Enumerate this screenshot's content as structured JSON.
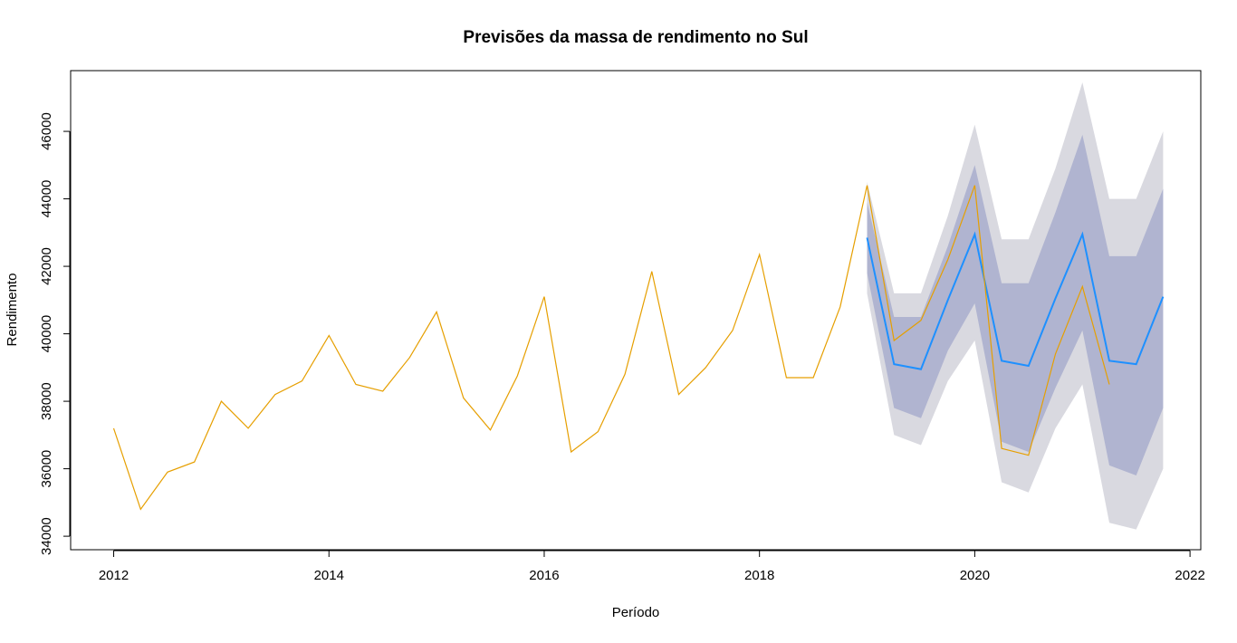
{
  "chart_data": {
    "type": "line",
    "title": "Previsões da massa de rendimento no Sul",
    "xlabel": "Período",
    "ylabel": "Rendimento",
    "xlim": [
      2011.6,
      2022.1
    ],
    "ylim": [
      33600,
      47800
    ],
    "x_ticks": [
      2012,
      2014,
      2016,
      2018,
      2020,
      2022
    ],
    "y_ticks": [
      34000,
      36000,
      38000,
      40000,
      42000,
      44000,
      46000
    ],
    "x_tick_labels": [
      "2012",
      "2014",
      "2016",
      "2018",
      "2020",
      "2022"
    ],
    "y_tick_labels": [
      "34000",
      "36000",
      "38000",
      "40000",
      "42000",
      "44000",
      "46000"
    ],
    "grid": false,
    "colors": {
      "observed": "#e69f00",
      "forecast": "#1e90ff",
      "band95": "#d9d9e0",
      "band80": "#b0b4d0"
    },
    "series": [
      {
        "key": "observed",
        "x": [
          2012.0,
          2012.25,
          2012.5,
          2012.75,
          2013.0,
          2013.25,
          2013.5,
          2013.75,
          2014.0,
          2014.25,
          2014.5,
          2014.75,
          2015.0,
          2015.25,
          2015.5,
          2015.75,
          2016.0,
          2016.25,
          2016.5,
          2016.75,
          2017.0,
          2017.25,
          2017.5,
          2017.75,
          2018.0,
          2018.25,
          2018.5,
          2018.75,
          2019.0,
          2019.25,
          2019.5,
          2019.75,
          2020.0,
          2020.25,
          2020.5,
          2020.75,
          2021.0,
          2021.25
        ],
        "y": [
          37200,
          34800,
          35900,
          36200,
          38000,
          37200,
          38200,
          38600,
          39950,
          38500,
          38300,
          39300,
          40650,
          38100,
          37150,
          38750,
          41100,
          36500,
          37100,
          38800,
          41850,
          38200,
          39000,
          40100,
          42350,
          38700,
          38700,
          40800,
          44400,
          39800,
          40400,
          42200,
          44400,
          36600,
          36400,
          39400,
          41400,
          38500
        ]
      },
      {
        "key": "forecast",
        "x": [
          2019.0,
          2019.25,
          2019.5,
          2019.75,
          2020.0,
          2020.25,
          2020.5,
          2020.75,
          2021.0,
          2021.25,
          2021.5,
          2021.75
        ],
        "y": [
          42850,
          39100,
          38950,
          41000,
          42950,
          39200,
          39050,
          41050,
          42950,
          39200,
          39100,
          41100
        ]
      }
    ],
    "bands": {
      "x": [
        2019.0,
        2019.25,
        2019.5,
        2019.75,
        2020.0,
        2020.25,
        2020.5,
        2020.75,
        2021.0,
        2021.25,
        2021.5,
        2021.75
      ],
      "lo95": [
        41200,
        37000,
        36700,
        38600,
        39800,
        35600,
        35300,
        37200,
        38500,
        34400,
        34200,
        36000
      ],
      "hi95": [
        44500,
        41200,
        41200,
        43500,
        46200,
        42800,
        42800,
        44900,
        47450,
        44000,
        44000,
        46000
      ],
      "lo80": [
        41800,
        37800,
        37500,
        39500,
        40900,
        36800,
        36500,
        38400,
        40100,
        36100,
        35800,
        37800
      ],
      "hi80": [
        43900,
        40500,
        40500,
        42600,
        45000,
        41500,
        41500,
        43600,
        45900,
        42300,
        42300,
        44300
      ]
    }
  }
}
